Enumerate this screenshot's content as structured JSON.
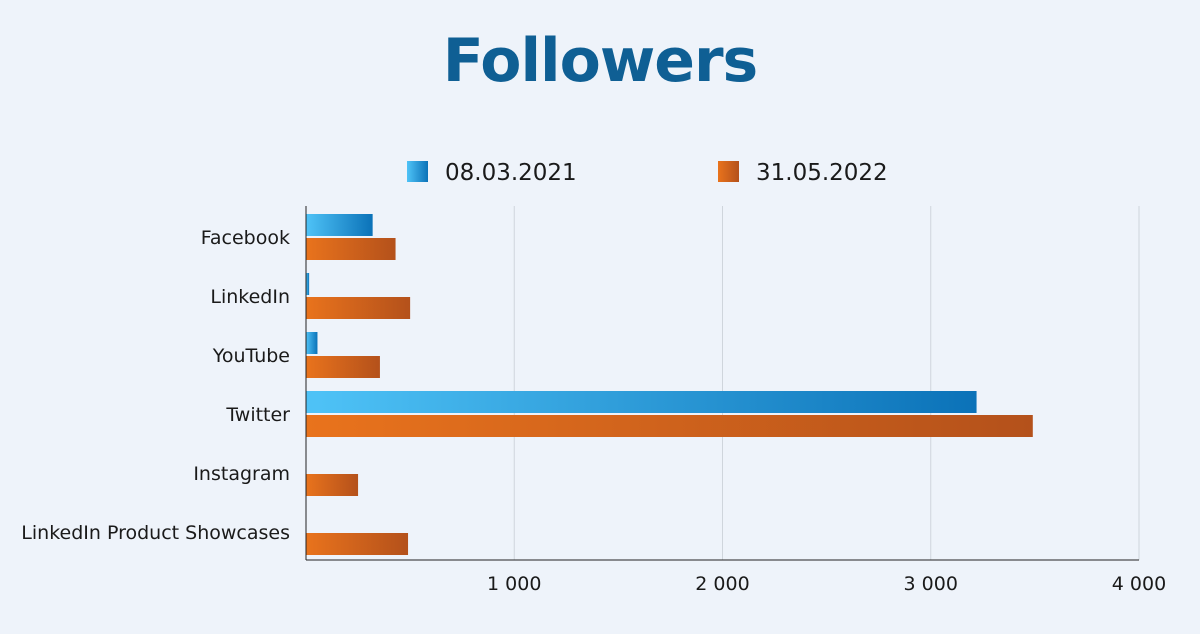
{
  "chart_data": {
    "type": "bar",
    "orientation": "horizontal",
    "title": "Followers",
    "categories": [
      "Facebook",
      "LinkedIn",
      "YouTube",
      "Twitter",
      "Instagram",
      "LinkedIn Product Showcases"
    ],
    "series": [
      {
        "name": "08.03.2021",
        "values": [
          320,
          15,
          55,
          3220,
          0,
          0
        ]
      },
      {
        "name": "31.05.2022",
        "values": [
          430,
          500,
          355,
          3490,
          250,
          490
        ]
      }
    ],
    "xlim": [
      0,
      4000
    ],
    "x_ticks": [
      1000,
      2000,
      3000,
      4000
    ],
    "x_tick_labels": [
      "1 000",
      "2 000",
      "3 000",
      "4 000"
    ],
    "grid": "vertical",
    "legend_position": "top-center",
    "colors": {
      "series_1_light": "#4fc3f7",
      "series_1_dark": "#0b72b8",
      "series_2_light": "#e9731c",
      "series_2_dark": "#b4511b",
      "title": "#0f5f94",
      "grid": "#cfd5dc",
      "axis": "#222222",
      "text": "#1a1a1a",
      "background": "#eef3fa"
    }
  }
}
